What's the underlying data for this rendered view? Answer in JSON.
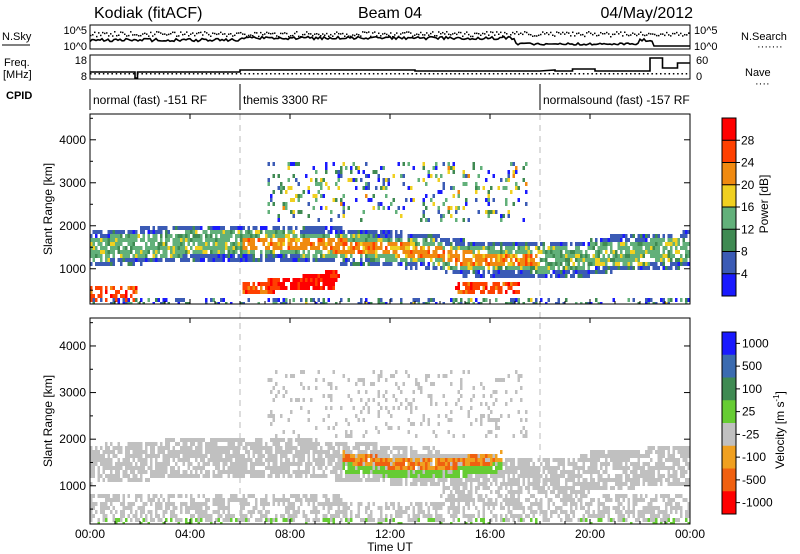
{
  "header": {
    "station": "Kodiak (fitACF)",
    "beam": "Beam 04",
    "date": "04/May/2012"
  },
  "left_labels": {
    "nsky": "N.Sky",
    "freq_line1": "Freq.",
    "freq_line2": "[MHz]",
    "cpid": "CPID"
  },
  "right_labels": {
    "nsearch": "N.Search",
    "nsearch_dots": "·······",
    "nave": "Nave",
    "nave_dots": "····"
  },
  "noise_axis": {
    "left_top": "10^5",
    "left_bottom": "10^0",
    "right_top": "10^5",
    "right_bottom": "10^0"
  },
  "freq_axis": {
    "left_top": "18",
    "left_bottom": "8",
    "right_top": "60",
    "right_bottom": "0"
  },
  "cpid_segments": [
    {
      "label": "normal (fast) -151 RF",
      "start_hour": 0
    },
    {
      "label": "themis 3300 RF",
      "start_hour": 6
    },
    {
      "label": "normalsound (fast) -157 RF",
      "start_hour": 18
    }
  ],
  "chart_data": [
    {
      "type": "heatmap",
      "title": "",
      "ylabel": "Slant Range [km]",
      "xlabel": "Time UT",
      "x_ticks": [
        "00:00",
        "04:00",
        "08:00",
        "12:00",
        "16:00",
        "20:00",
        "00:00"
      ],
      "x_range_hours": [
        0,
        24
      ],
      "y_ticks": [
        "1000",
        "2000",
        "3000",
        "4000"
      ],
      "ylim_km": [
        180,
        4600
      ],
      "colorbar": {
        "label": "Power [dB]",
        "ticks": [
          "4",
          "8",
          "12",
          "16",
          "20",
          "24",
          "28"
        ],
        "range": [
          0,
          30
        ],
        "colors": [
          "#1a1aff",
          "#3b5bb5",
          "#3f8a52",
          "#62b07a",
          "#f0d020",
          "#f08a10",
          "#ff4000",
          "#ff0000"
        ]
      },
      "features": [
        {
          "name": "main-echo-band",
          "start_hour": 0.0,
          "end_hour": 24.0,
          "range_km": [
            1100,
            2000
          ],
          "level": "medium-high"
        },
        {
          "name": "near-range-echo",
          "start_hour": 6.0,
          "end_hour": 10.0,
          "range_km": [
            500,
            950
          ],
          "level": "high"
        },
        {
          "name": "afternoon-near-echo",
          "start_hour": 14.5,
          "end_hour": 17.0,
          "range_km": [
            400,
            800
          ],
          "level": "high"
        },
        {
          "name": "far-range-patches",
          "start_hour": 8.0,
          "end_hour": 18.0,
          "range_km": [
            2500,
            3500
          ],
          "level": "low-medium"
        }
      ]
    },
    {
      "type": "heatmap",
      "title": "",
      "ylabel": "Slant Range [km]",
      "xlabel": "Time UT",
      "x_ticks": [
        "00:00",
        "04:00",
        "08:00",
        "12:00",
        "16:00",
        "20:00",
        "00:00"
      ],
      "x_range_hours": [
        0,
        24
      ],
      "y_ticks": [
        "1000",
        "2000",
        "3000",
        "4000"
      ],
      "ylim_km": [
        180,
        4600
      ],
      "colorbar": {
        "label": "Velocity [m s^-1]",
        "ticks": [
          "1000",
          "500",
          "100",
          "25",
          "-25",
          "-100",
          "-500",
          "-1000"
        ],
        "range": [
          -1200,
          1200
        ],
        "colors": [
          "#1a1aff",
          "#3b6bb0",
          "#3f8a52",
          "#66cc33",
          "#c0c0c0",
          "#f0a020",
          "#f06010",
          "#ff0000"
        ]
      },
      "features": [
        {
          "name": "ground-scatter-band",
          "start_hour": 0.0,
          "end_hour": 24.0,
          "range_km": [
            1100,
            2000
          ],
          "level": "near-zero"
        },
        {
          "name": "ground-scatter-near",
          "start_hour": 0.0,
          "end_hour": 24.0,
          "range_km": [
            300,
            900
          ],
          "level": "near-zero"
        },
        {
          "name": "negative-velocity-arc",
          "start_hour": 10.0,
          "end_hour": 16.5,
          "range_km": [
            1300,
            2000
          ],
          "level": "negative"
        }
      ]
    }
  ]
}
